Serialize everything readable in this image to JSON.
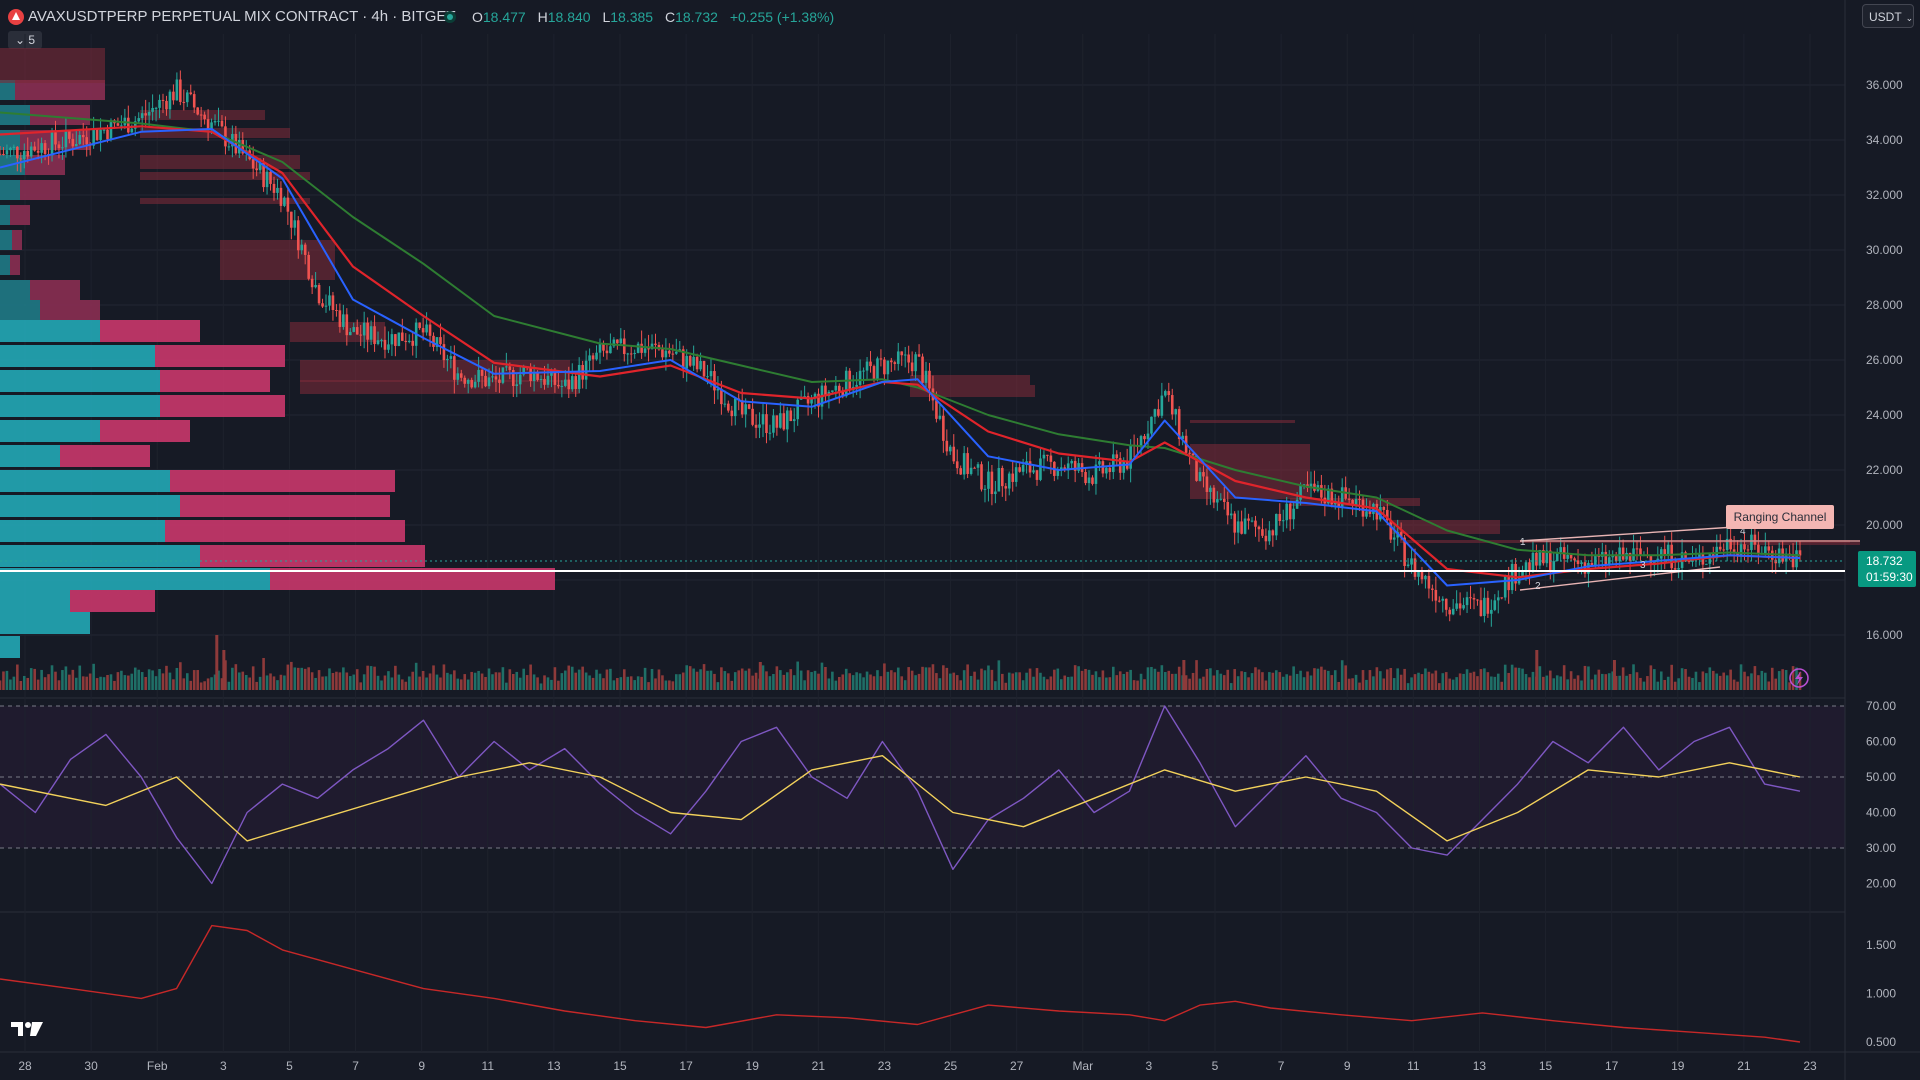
{
  "header": {
    "symbol": "AVAXUSDTPERP PERPETUAL MIX CONTRACT · 4h · BITGET",
    "open_label": "O",
    "open": "18.477",
    "high_label": "H",
    "high": "18.840",
    "low_label": "L",
    "low": "18.385",
    "close_label": "C",
    "close": "18.732",
    "change": "+0.255 (+1.38%)",
    "indicator_count": "5",
    "currency": "USDT"
  },
  "colors": {
    "bg": "#161a25",
    "up": "#26a69a",
    "down": "#ef5350",
    "ema_fast": "#2962ff",
    "ema_mid": "#e0242b",
    "ema_slow": "#2e7d32",
    "rsi": "#7e57c2",
    "rsi_ma": "#f2d15b",
    "atr": "#c62828"
  },
  "icons": [
    "avalanche-logo-icon",
    "live-dot-icon",
    "chevron-down-icon",
    "lightning-icon",
    "tradingview-logo-icon"
  ],
  "chart_data": [
    {
      "type": "line",
      "description": "4h candlestick price with EMAs",
      "ylim": [
        14.5,
        37.0
      ],
      "y_ticks": [
        "36.000",
        "34.000",
        "32.000",
        "30.000",
        "28.000",
        "26.000",
        "24.000",
        "22.000",
        "20.000",
        "18.000",
        "16.000"
      ],
      "x_ticks": [
        "28",
        "30",
        "Feb",
        "3",
        "5",
        "7",
        "9",
        "11",
        "13",
        "15",
        "17",
        "19",
        "21",
        "23",
        "25",
        "27",
        "Mar",
        "3",
        "5",
        "7",
        "9",
        "11",
        "13",
        "15",
        "17",
        "19",
        "21",
        "23"
      ],
      "price_path": [
        [
          0,
          33.5
        ],
        [
          2,
          34.0
        ],
        [
          4,
          34.8
        ],
        [
          5,
          35.8
        ],
        [
          6,
          34.6
        ],
        [
          8,
          32.0
        ],
        [
          9,
          28.5
        ],
        [
          10,
          27.0
        ],
        [
          11,
          26.8
        ],
        [
          12,
          27.0
        ],
        [
          13,
          25.5
        ],
        [
          14,
          25.2
        ],
        [
          15,
          25.6
        ],
        [
          16,
          25.0
        ],
        [
          17,
          26.2
        ],
        [
          18,
          26.5
        ],
        [
          19,
          26.3
        ],
        [
          20,
          25.5
        ],
        [
          21,
          24.0
        ],
        [
          22,
          23.6
        ],
        [
          23,
          24.5
        ],
        [
          24,
          25.2
        ],
        [
          25,
          25.8
        ],
        [
          26,
          26.0
        ],
        [
          27,
          22.5
        ],
        [
          28,
          21.5
        ],
        [
          29,
          22.0
        ],
        [
          30,
          22.2
        ],
        [
          31,
          21.8
        ],
        [
          32,
          22.4
        ],
        [
          33,
          24.8
        ],
        [
          34,
          21.5
        ],
        [
          35,
          20.0
        ],
        [
          36,
          19.8
        ],
        [
          37,
          21.2
        ],
        [
          38,
          21.0
        ],
        [
          39,
          20.6
        ],
        [
          40,
          18.5
        ],
        [
          41,
          17.2
        ],
        [
          42,
          17.0
        ],
        [
          43,
          18.4
        ],
        [
          44,
          18.8
        ],
        [
          45,
          18.6
        ],
        [
          46,
          18.8
        ],
        [
          47,
          19.0
        ],
        [
          48,
          18.6
        ],
        [
          49,
          19.4
        ],
        [
          50,
          19.1
        ],
        [
          51,
          18.73
        ]
      ],
      "ema_fast": [
        [
          0,
          33.0
        ],
        [
          4,
          34.3
        ],
        [
          6,
          34.4
        ],
        [
          8,
          32.6
        ],
        [
          10,
          28.2
        ],
        [
          12,
          26.8
        ],
        [
          14,
          25.5
        ],
        [
          17,
          25.6
        ],
        [
          19,
          26.0
        ],
        [
          21,
          24.5
        ],
        [
          23,
          24.3
        ],
        [
          25,
          25.2
        ],
        [
          26,
          25.3
        ],
        [
          28,
          22.5
        ],
        [
          30,
          22.0
        ],
        [
          32,
          22.2
        ],
        [
          33,
          23.8
        ],
        [
          35,
          21.0
        ],
        [
          37,
          20.8
        ],
        [
          39,
          20.5
        ],
        [
          41,
          17.8
        ],
        [
          43,
          18.0
        ],
        [
          45,
          18.5
        ],
        [
          47,
          18.7
        ],
        [
          49,
          18.9
        ],
        [
          51,
          18.8
        ]
      ],
      "ema_mid": [
        [
          0,
          34.2
        ],
        [
          4,
          34.5
        ],
        [
          6,
          34.3
        ],
        [
          8,
          32.8
        ],
        [
          10,
          29.4
        ],
        [
          12,
          27.6
        ],
        [
          14,
          25.9
        ],
        [
          17,
          25.4
        ],
        [
          19,
          25.8
        ],
        [
          21,
          24.8
        ],
        [
          23,
          24.6
        ],
        [
          25,
          25.2
        ],
        [
          26,
          25.1
        ],
        [
          28,
          23.4
        ],
        [
          30,
          22.6
        ],
        [
          32,
          22.3
        ],
        [
          33,
          23.0
        ],
        [
          35,
          21.6
        ],
        [
          37,
          21.0
        ],
        [
          39,
          20.6
        ],
        [
          41,
          18.4
        ],
        [
          43,
          18.1
        ],
        [
          45,
          18.4
        ],
        [
          47,
          18.6
        ],
        [
          49,
          18.9
        ],
        [
          51,
          18.8
        ]
      ],
      "ema_slow": [
        [
          0,
          35.0
        ],
        [
          4,
          34.6
        ],
        [
          6,
          34.3
        ],
        [
          8,
          33.2
        ],
        [
          10,
          31.2
        ],
        [
          12,
          29.5
        ],
        [
          14,
          27.6
        ],
        [
          17,
          26.6
        ],
        [
          19,
          26.4
        ],
        [
          21,
          25.8
        ],
        [
          23,
          25.2
        ],
        [
          25,
          25.3
        ],
        [
          26,
          25.0
        ],
        [
          28,
          24.0
        ],
        [
          30,
          23.3
        ],
        [
          32,
          22.9
        ],
        [
          33,
          22.8
        ],
        [
          35,
          22.0
        ],
        [
          37,
          21.4
        ],
        [
          39,
          21.0
        ],
        [
          41,
          19.8
        ],
        [
          43,
          19.1
        ],
        [
          45,
          18.9
        ],
        [
          47,
          18.9
        ],
        [
          49,
          19.0
        ],
        [
          51,
          18.9
        ]
      ],
      "price_label": "18.732",
      "countdown": "01:59:30",
      "annotation": "Ranging Channel",
      "channel_labels": [
        "1",
        "2",
        "3",
        "4"
      ]
    },
    {
      "type": "line",
      "description": "RSI with moving average",
      "ylim": [
        15,
        72
      ],
      "y_ticks": [
        "70.00",
        "60.00",
        "50.00",
        "40.00",
        "30.00",
        "20.00"
      ],
      "bands": [
        70,
        50,
        30
      ],
      "rsi": [
        [
          0,
          48
        ],
        [
          1,
          40
        ],
        [
          2,
          55
        ],
        [
          3,
          62
        ],
        [
          4,
          50
        ],
        [
          5,
          33
        ],
        [
          6,
          20
        ],
        [
          7,
          40
        ],
        [
          8,
          48
        ],
        [
          9,
          44
        ],
        [
          10,
          52
        ],
        [
          11,
          58
        ],
        [
          12,
          66
        ],
        [
          13,
          50
        ],
        [
          14,
          60
        ],
        [
          15,
          52
        ],
        [
          16,
          58
        ],
        [
          17,
          48
        ],
        [
          18,
          40
        ],
        [
          19,
          34
        ],
        [
          20,
          46
        ],
        [
          21,
          60
        ],
        [
          22,
          64
        ],
        [
          23,
          50
        ],
        [
          24,
          44
        ],
        [
          25,
          60
        ],
        [
          26,
          46
        ],
        [
          27,
          24
        ],
        [
          28,
          38
        ],
        [
          29,
          44
        ],
        [
          30,
          52
        ],
        [
          31,
          40
        ],
        [
          32,
          46
        ],
        [
          33,
          70
        ],
        [
          34,
          54
        ],
        [
          35,
          36
        ],
        [
          36,
          46
        ],
        [
          37,
          56
        ],
        [
          38,
          44
        ],
        [
          39,
          40
        ],
        [
          40,
          30
        ],
        [
          41,
          28
        ],
        [
          42,
          38
        ],
        [
          43,
          48
        ],
        [
          44,
          60
        ],
        [
          45,
          54
        ],
        [
          46,
          64
        ],
        [
          47,
          52
        ],
        [
          48,
          60
        ],
        [
          49,
          64
        ],
        [
          50,
          48
        ],
        [
          51,
          46
        ]
      ],
      "rsi_ma": [
        [
          0,
          48
        ],
        [
          3,
          42
        ],
        [
          5,
          50
        ],
        [
          7,
          32
        ],
        [
          9,
          38
        ],
        [
          11,
          44
        ],
        [
          13,
          50
        ],
        [
          15,
          54
        ],
        [
          17,
          50
        ],
        [
          19,
          40
        ],
        [
          21,
          38
        ],
        [
          23,
          52
        ],
        [
          25,
          56
        ],
        [
          27,
          40
        ],
        [
          29,
          36
        ],
        [
          31,
          44
        ],
        [
          33,
          52
        ],
        [
          35,
          46
        ],
        [
          37,
          50
        ],
        [
          39,
          46
        ],
        [
          41,
          32
        ],
        [
          43,
          40
        ],
        [
          45,
          52
        ],
        [
          47,
          50
        ],
        [
          49,
          54
        ],
        [
          51,
          50
        ]
      ]
    },
    {
      "type": "line",
      "description": "Volatility / ATR style indicator",
      "ylim": [
        0.45,
        1.85
      ],
      "y_ticks": [
        "1.500",
        "1.000",
        "0.500"
      ],
      "values": [
        [
          0,
          1.15
        ],
        [
          2,
          1.05
        ],
        [
          4,
          0.95
        ],
        [
          5,
          1.05
        ],
        [
          6,
          1.7
        ],
        [
          7,
          1.65
        ],
        [
          8,
          1.45
        ],
        [
          10,
          1.25
        ],
        [
          12,
          1.05
        ],
        [
          14,
          0.95
        ],
        [
          16,
          0.82
        ],
        [
          18,
          0.72
        ],
        [
          20,
          0.65
        ],
        [
          22,
          0.78
        ],
        [
          24,
          0.75
        ],
        [
          26,
          0.68
        ],
        [
          28,
          0.88
        ],
        [
          30,
          0.82
        ],
        [
          32,
          0.78
        ],
        [
          33,
          0.72
        ],
        [
          34,
          0.88
        ],
        [
          35,
          0.92
        ],
        [
          36,
          0.85
        ],
        [
          38,
          0.78
        ],
        [
          40,
          0.72
        ],
        [
          42,
          0.8
        ],
        [
          44,
          0.72
        ],
        [
          46,
          0.65
        ],
        [
          48,
          0.6
        ],
        [
          50,
          0.55
        ],
        [
          51,
          0.5
        ]
      ]
    }
  ]
}
